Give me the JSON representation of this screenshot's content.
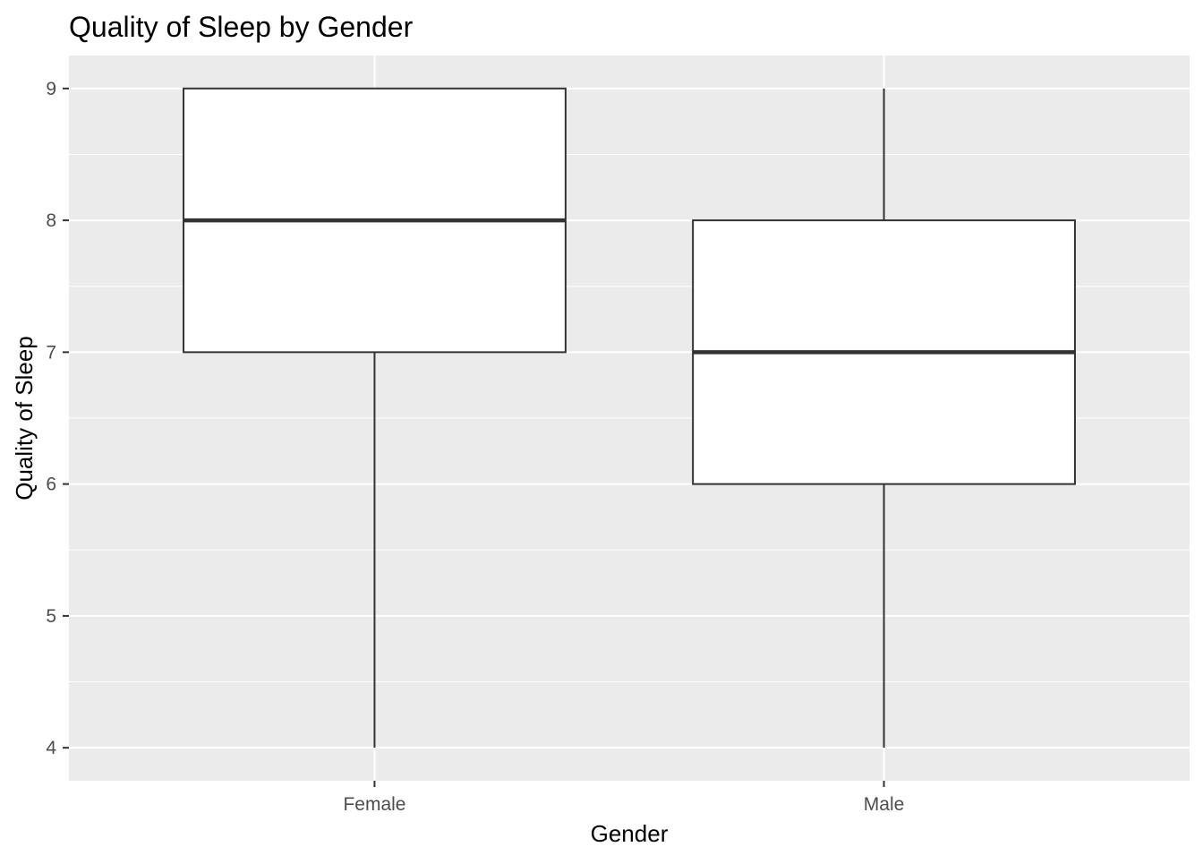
{
  "chart_data": {
    "type": "boxplot",
    "title": "Quality of Sleep by Gender",
    "xlabel": "Gender",
    "ylabel": "Quality of Sleep",
    "categories": [
      "Female",
      "Male"
    ],
    "boxes": [
      {
        "category": "Female",
        "min": 4,
        "q1": 7,
        "median": 8,
        "q3": 9,
        "max": 9
      },
      {
        "category": "Male",
        "min": 4,
        "q1": 6,
        "median": 7,
        "q3": 8,
        "max": 9
      }
    ],
    "yticks": [
      4,
      5,
      6,
      7,
      8,
      9
    ],
    "ylim": [
      3.75,
      9.25
    ],
    "grid": true,
    "legend": "none",
    "colors": {
      "panel_background": "#EBEBEB",
      "grid": "#FFFFFF",
      "box_fill": "#FFFFFF",
      "box_stroke": "#333333",
      "tick_label": "#4D4D4D",
      "text": "#000000"
    }
  }
}
